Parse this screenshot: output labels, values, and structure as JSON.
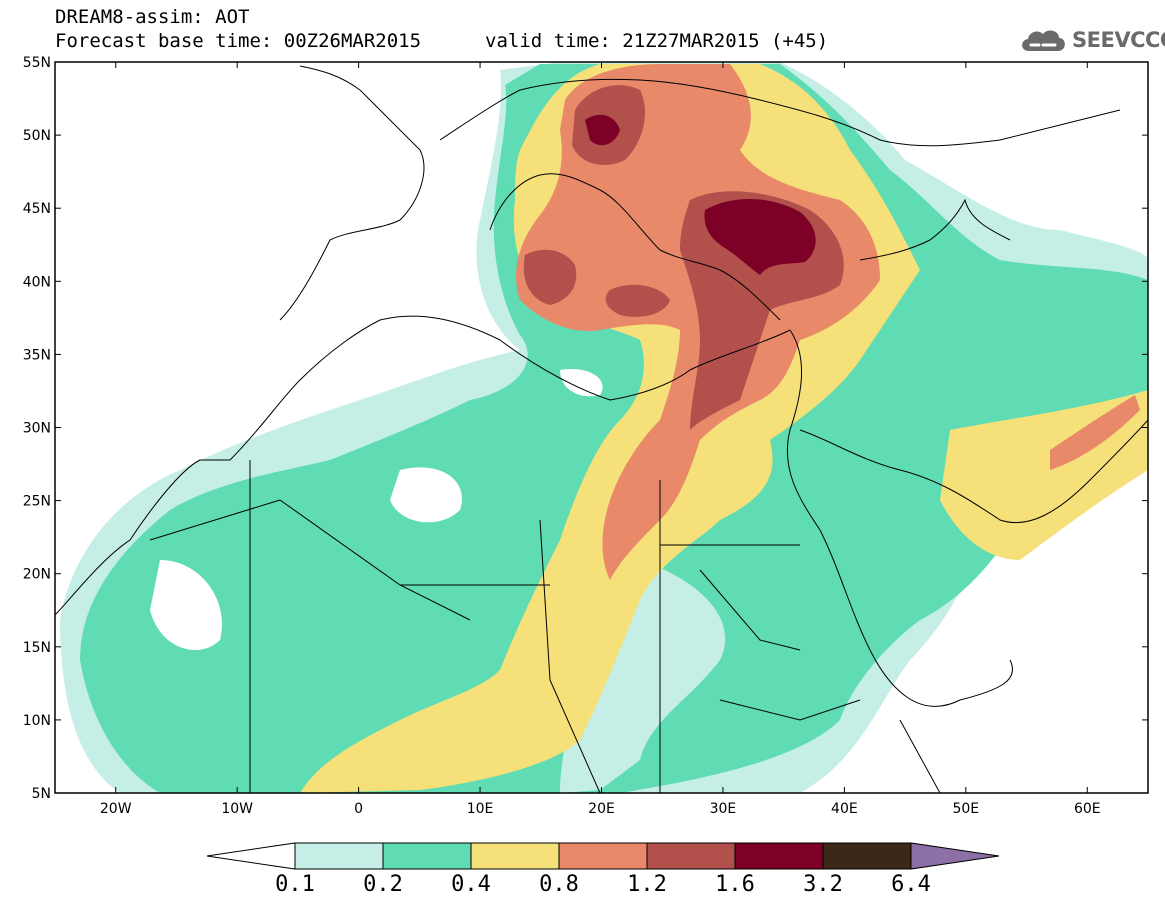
{
  "header": {
    "title": "DREAM8-assim: AOT",
    "base_time": "Forecast base time: 00Z26MAR2015",
    "valid_time": "valid time: 21Z27MAR2015 (+45)"
  },
  "logo": {
    "text": "SEEVCCC",
    "icon": "cloud-logo-icon",
    "color": "#6a6a6a"
  },
  "map": {
    "lon_range": [
      -25,
      65
    ],
    "lat_range": [
      5,
      55
    ],
    "lat_ticks": [
      "5N",
      "10N",
      "15N",
      "20N",
      "25N",
      "30N",
      "35N",
      "40N",
      "45N",
      "50N",
      "55N"
    ],
    "lon_ticks": [
      "20W",
      "10W",
      "0",
      "10E",
      "20E",
      "30E",
      "40E",
      "50E",
      "60E"
    ]
  },
  "colorbar": {
    "levels": [
      "0.1",
      "0.2",
      "0.4",
      "0.8",
      "1.2",
      "1.6",
      "3.2",
      "6.4"
    ],
    "colors": [
      "#c5efe6",
      "#5fdcb4",
      "#f5e07a",
      "#e8896a",
      "#b2504c",
      "#7d0026",
      "#3a2716",
      "#8b6fa6"
    ],
    "under_color": "#ffffff"
  }
}
